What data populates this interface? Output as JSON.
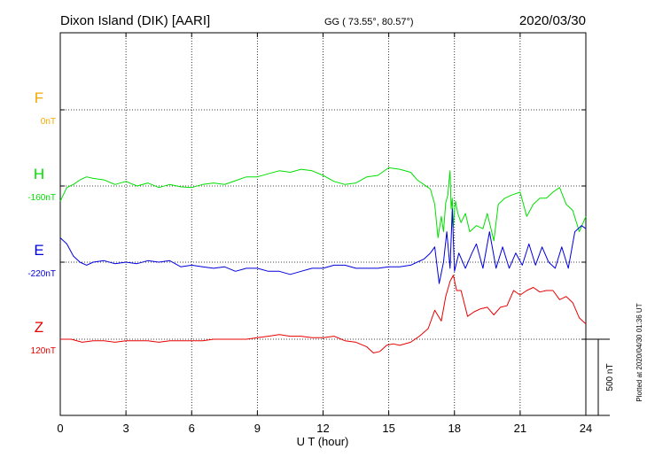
{
  "header": {
    "station": "Dixon Island (DIK)  [AARI]",
    "coords": "GG ( 73.55°,  80.57°)",
    "date": "2020/03/30"
  },
  "footer": {
    "plotted": "Plotted at 2020/04/30 01:36 UT"
  },
  "chart_data": {
    "type": "line",
    "title": "Dixon Island (DIK)  [AARI]",
    "xlabel": "U T (hour)",
    "ylabel": "",
    "xlim": [
      0,
      24
    ],
    "xticks": [
      0,
      3,
      6,
      9,
      12,
      15,
      18,
      21,
      24
    ],
    "scale_bar": {
      "label": "500 nT",
      "value_nT": 500
    },
    "grid": true,
    "series": [
      {
        "name": "F",
        "baseline_label": "0nT",
        "color": "#f5a800",
        "has_data": false,
        "x": [],
        "y": []
      },
      {
        "name": "H",
        "baseline_label": "-160nT",
        "color": "#00e000",
        "has_data": true,
        "x": [
          0.0,
          0.3,
          0.6,
          0.9,
          1.2,
          1.5,
          2.0,
          2.5,
          3.0,
          3.5,
          4.0,
          4.5,
          5.0,
          5.5,
          6.0,
          6.5,
          7.0,
          7.5,
          8.0,
          8.5,
          9.0,
          9.5,
          10.0,
          10.5,
          11.0,
          11.5,
          12.0,
          12.5,
          13.0,
          13.5,
          14.0,
          14.5,
          15.0,
          15.5,
          16.0,
          16.3,
          16.6,
          16.9,
          17.1,
          17.25,
          17.4,
          17.5,
          17.6,
          17.7,
          17.75,
          17.8,
          17.85,
          17.9,
          17.95,
          18.0,
          18.05,
          18.15,
          18.3,
          18.5,
          18.7,
          19.0,
          19.3,
          19.5,
          19.8,
          20.0,
          20.3,
          20.6,
          21.0,
          21.3,
          21.6,
          21.9,
          22.2,
          22.5,
          22.8,
          23.1,
          23.4,
          23.7,
          24.0
        ],
        "y": [
          -100,
          -10,
          10,
          40,
          60,
          50,
          40,
          10,
          30,
          0,
          20,
          -10,
          10,
          -5,
          -10,
          10,
          20,
          10,
          35,
          60,
          60,
          80,
          100,
          90,
          110,
          100,
          70,
          30,
          10,
          20,
          60,
          70,
          120,
          110,
          90,
          40,
          10,
          -20,
          -120,
          -340,
          -200,
          -300,
          -110,
          -60,
          30,
          100,
          -150,
          -80,
          -270,
          -160,
          -100,
          -180,
          -240,
          -180,
          -300,
          -260,
          -280,
          -180,
          -360,
          -120,
          -80,
          -60,
          -40,
          -200,
          -120,
          -80,
          -80,
          -40,
          -10,
          -120,
          -160,
          -300,
          -200
        ]
      },
      {
        "name": "E",
        "baseline_label": "-220nT",
        "color": "#0000dd",
        "has_data": true,
        "x": [
          0.0,
          0.3,
          0.6,
          0.9,
          1.2,
          1.5,
          2.0,
          2.5,
          3.0,
          3.5,
          4.0,
          4.5,
          5.0,
          5.5,
          6.0,
          6.5,
          7.0,
          7.5,
          8.0,
          8.5,
          9.0,
          9.5,
          10.0,
          10.5,
          11.0,
          11.5,
          12.0,
          12.5,
          13.0,
          13.5,
          14.0,
          14.5,
          15.0,
          15.5,
          16.0,
          16.3,
          16.6,
          16.9,
          17.1,
          17.3,
          17.5,
          17.65,
          17.8,
          17.9,
          18.0,
          18.2,
          18.5,
          18.8,
          19.0,
          19.3,
          19.6,
          19.9,
          20.2,
          20.5,
          20.8,
          21.1,
          21.4,
          21.7,
          22.0,
          22.3,
          22.6,
          22.9,
          23.2,
          23.5,
          23.8,
          24.0
        ],
        "y": [
          160,
          120,
          40,
          0,
          -20,
          0,
          10,
          -10,
          0,
          -10,
          10,
          0,
          10,
          -30,
          -20,
          -30,
          -40,
          -30,
          -60,
          -40,
          -40,
          -60,
          -60,
          -80,
          -60,
          -40,
          -40,
          -20,
          -20,
          -40,
          -40,
          -40,
          -30,
          -30,
          -20,
          0,
          20,
          60,
          100,
          -140,
          0,
          200,
          -40,
          350,
          -60,
          60,
          -40,
          60,
          120,
          -40,
          200,
          -40,
          100,
          -40,
          60,
          -20,
          120,
          -20,
          100,
          0,
          -40,
          100,
          -40,
          200,
          240,
          220
        ]
      },
      {
        "name": "Z",
        "baseline_label": "120nT",
        "color": "#e80000",
        "has_data": true,
        "x": [
          0.0,
          0.5,
          1.0,
          1.5,
          2.0,
          2.5,
          3.0,
          3.5,
          4.0,
          4.5,
          5.0,
          5.5,
          6.0,
          6.5,
          7.0,
          7.5,
          8.0,
          8.5,
          9.0,
          9.5,
          10.0,
          10.5,
          11.0,
          11.5,
          12.0,
          12.5,
          13.0,
          13.5,
          14.0,
          14.3,
          14.6,
          14.9,
          15.2,
          15.5,
          16.0,
          16.4,
          16.8,
          17.1,
          17.4,
          17.6,
          17.8,
          17.95,
          18.1,
          18.3,
          18.6,
          18.9,
          19.2,
          19.5,
          19.8,
          20.1,
          20.4,
          20.7,
          21.0,
          21.3,
          21.6,
          21.9,
          22.2,
          22.5,
          22.8,
          23.1,
          23.4,
          23.7,
          24.0
        ],
        "y": [
          0,
          0,
          -20,
          -10,
          -10,
          -20,
          -10,
          -10,
          -10,
          -20,
          -10,
          -10,
          -10,
          -10,
          0,
          0,
          0,
          0,
          10,
          20,
          30,
          20,
          20,
          10,
          10,
          20,
          -10,
          -20,
          -50,
          -90,
          -80,
          -40,
          -30,
          -40,
          -20,
          20,
          70,
          190,
          120,
          280,
          380,
          420,
          320,
          320,
          150,
          180,
          200,
          210,
          160,
          210,
          220,
          320,
          290,
          320,
          340,
          310,
          320,
          320,
          260,
          280,
          240,
          140,
          100
        ]
      }
    ]
  }
}
